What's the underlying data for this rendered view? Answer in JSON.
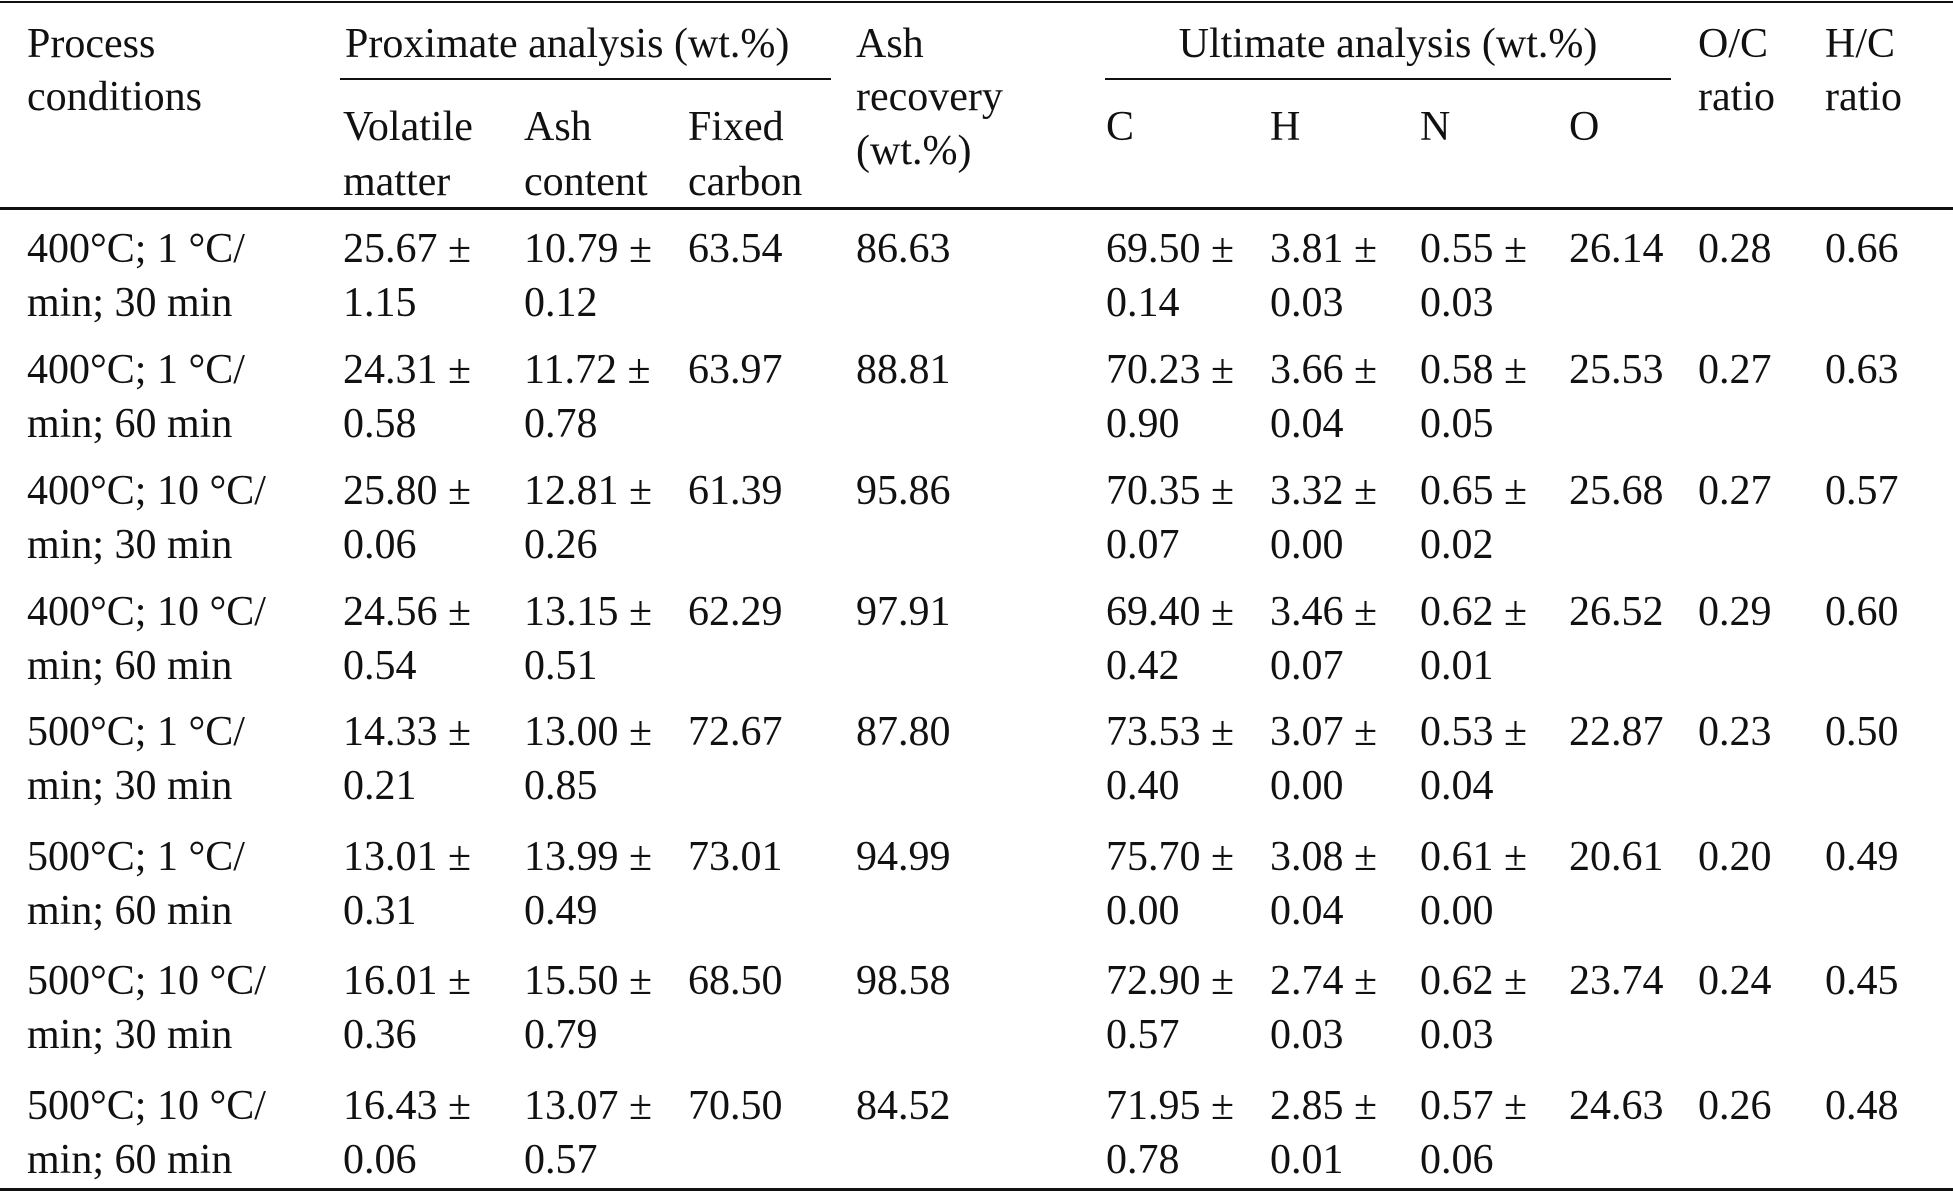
{
  "header": {
    "process_conditions": [
      "Process",
      "conditions"
    ],
    "proximate": "Proximate analysis (wt.%)",
    "proximate_columns": [
      [
        "Volatile",
        "matter"
      ],
      [
        "Ash",
        "content"
      ],
      [
        "Fixed",
        "carbon"
      ]
    ],
    "ash_recovery": [
      "Ash",
      "recovery",
      "(wt.%)"
    ],
    "ultimate": "Ultimate analysis (wt.%)",
    "ultimate_columns": [
      "C",
      "H",
      "N",
      "O"
    ],
    "oc_ratio": [
      "O/C",
      "ratio"
    ],
    "hc_ratio": [
      "H/C",
      "ratio"
    ]
  },
  "table": {
    "rows": [
      [
        [
          "400°C; 1 °C/",
          "min; 30 min"
        ],
        [
          "25.67 ±",
          "1.15"
        ],
        [
          "10.79 ±",
          "0.12"
        ],
        [
          "63.54"
        ],
        [
          "86.63"
        ],
        [
          "69.50 ±",
          "0.14"
        ],
        [
          "3.81 ±",
          "0.03"
        ],
        [
          "0.55 ±",
          "0.03"
        ],
        [
          "26.14"
        ],
        [
          "0.28"
        ],
        [
          "0.66"
        ]
      ],
      [
        [
          "400°C; 1 °C/",
          "min; 60 min"
        ],
        [
          "24.31 ±",
          "0.58"
        ],
        [
          "11.72 ±",
          "0.78"
        ],
        [
          "63.97"
        ],
        [
          "88.81"
        ],
        [
          "70.23 ±",
          "0.90"
        ],
        [
          "3.66 ±",
          "0.04"
        ],
        [
          "0.58 ±",
          "0.05"
        ],
        [
          "25.53"
        ],
        [
          "0.27"
        ],
        [
          "0.63"
        ]
      ],
      [
        [
          "400°C; 10 °C/",
          "min; 30 min"
        ],
        [
          "25.80 ±",
          "0.06"
        ],
        [
          "12.81 ±",
          "0.26"
        ],
        [
          "61.39"
        ],
        [
          "95.86"
        ],
        [
          "70.35 ±",
          "0.07"
        ],
        [
          "3.32 ±",
          "0.00"
        ],
        [
          "0.65 ±",
          "0.02"
        ],
        [
          "25.68"
        ],
        [
          "0.27"
        ],
        [
          "0.57"
        ]
      ],
      [
        [
          "400°C; 10 °C/",
          "min; 60 min"
        ],
        [
          "24.56 ±",
          "0.54"
        ],
        [
          "13.15 ±",
          "0.51"
        ],
        [
          "62.29"
        ],
        [
          "97.91"
        ],
        [
          "69.40 ±",
          "0.42"
        ],
        [
          "3.46 ±",
          "0.07"
        ],
        [
          "0.62 ±",
          "0.01"
        ],
        [
          "26.52"
        ],
        [
          "0.29"
        ],
        [
          "0.60"
        ]
      ],
      [
        [
          "500°C; 1 °C/",
          "min; 30 min"
        ],
        [
          "14.33 ±",
          "0.21"
        ],
        [
          "13.00 ±",
          "0.85"
        ],
        [
          "72.67"
        ],
        [
          "87.80"
        ],
        [
          "73.53 ±",
          "0.40"
        ],
        [
          "3.07 ±",
          "0.00"
        ],
        [
          "0.53 ±",
          "0.04"
        ],
        [
          "22.87"
        ],
        [
          "0.23"
        ],
        [
          "0.50"
        ]
      ],
      [
        [
          "500°C; 1 °C/",
          "min; 60 min"
        ],
        [
          "13.01 ±",
          "0.31"
        ],
        [
          "13.99 ±",
          "0.49"
        ],
        [
          "73.01"
        ],
        [
          "94.99"
        ],
        [
          "75.70 ±",
          "0.00"
        ],
        [
          "3.08 ±",
          "0.04"
        ],
        [
          "0.61 ±",
          "0.00"
        ],
        [
          "20.61"
        ],
        [
          "0.20"
        ],
        [
          "0.49"
        ]
      ],
      [
        [
          "500°C; 10 °C/",
          "min; 30 min"
        ],
        [
          "16.01 ±",
          "0.36"
        ],
        [
          "15.50 ±",
          "0.79"
        ],
        [
          "68.50"
        ],
        [
          "98.58"
        ],
        [
          "72.90 ±",
          "0.57"
        ],
        [
          "2.74 ±",
          "0.03"
        ],
        [
          "0.62 ±",
          "0.03"
        ],
        [
          "23.74"
        ],
        [
          "0.24"
        ],
        [
          "0.45"
        ]
      ],
      [
        [
          "500°C; 10 °C/",
          "min; 60 min"
        ],
        [
          "16.43 ±",
          "0.06"
        ],
        [
          "13.07 ±",
          "0.57"
        ],
        [
          "70.50"
        ],
        [
          "84.52"
        ],
        [
          "71.95 ±",
          "0.78"
        ],
        [
          "2.85 ±",
          "0.01"
        ],
        [
          "0.57 ±",
          "0.06"
        ],
        [
          "24.63"
        ],
        [
          "0.26"
        ],
        [
          "0.48"
        ]
      ]
    ]
  }
}
